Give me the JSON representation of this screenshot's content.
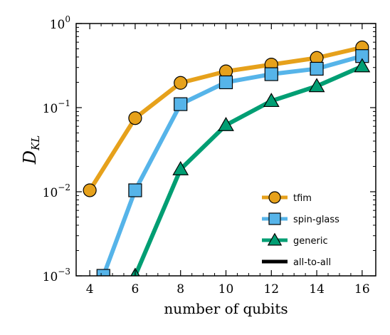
{
  "chart_data": {
    "type": "line",
    "xlabel": "number of qubits",
    "ylabel_main": "D",
    "ylabel_sub": "KL",
    "xlim": [
      3.4,
      16.6
    ],
    "ylim": [
      0.001,
      1.0
    ],
    "yscale": "log",
    "xticks": [
      4,
      6,
      8,
      10,
      12,
      14,
      16
    ],
    "yticks": [
      {
        "value": 0.001,
        "base": "10",
        "exp": "−3"
      },
      {
        "value": 0.01,
        "base": "10",
        "exp": "−2"
      },
      {
        "value": 0.1,
        "base": "10",
        "exp": "−1"
      },
      {
        "value": 1,
        "base": "10",
        "exp": "0"
      }
    ],
    "grid": false,
    "legend_position": "lower-right",
    "series": [
      {
        "name": "tfim",
        "color": "#E6A11B",
        "marker": "circle",
        "x": [
          4,
          6,
          8,
          10,
          12,
          14,
          16
        ],
        "y": [
          0.0104,
          0.075,
          0.197,
          0.27,
          0.325,
          0.39,
          0.52
        ]
      },
      {
        "name": "spin-glass",
        "color": "#56B4E9",
        "marker": "square",
        "x": [
          4.6,
          6,
          8,
          10,
          12,
          14,
          16
        ],
        "y": [
          0.001,
          0.0104,
          0.11,
          0.2,
          0.25,
          0.29,
          0.41
        ]
      },
      {
        "name": "generic",
        "color": "#009E73",
        "marker": "triangle",
        "x": [
          6,
          8,
          10,
          12,
          14,
          16
        ],
        "y": [
          0.001,
          0.0185,
          0.062,
          0.12,
          0.18,
          0.31
        ]
      },
      {
        "name": "all-to-all",
        "color": "#000000",
        "marker": "none",
        "x": [],
        "y": []
      }
    ]
  }
}
